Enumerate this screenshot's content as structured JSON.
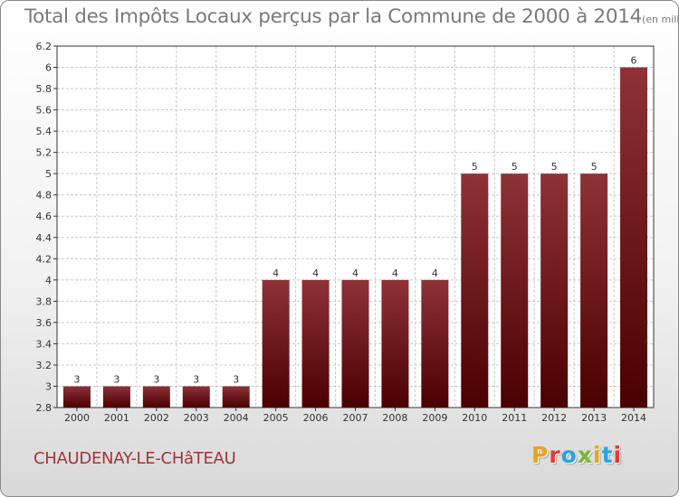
{
  "colors": {
    "bar_top": "#8e3238",
    "bar_bottom": "#4a0000",
    "title": "#7a7a7a",
    "commune": "#a0353b",
    "grid": "#c8c8c8",
    "logo": [
      "#e8a321",
      "#e03a3a",
      "#2aa3d8",
      "#78b832",
      "#e8a321",
      "#2aa3d8",
      "#e03a3a"
    ]
  },
  "footer": {
    "commune": "CHAUDENAY-LE-CHâTEAU",
    "brand": "Proxiti"
  },
  "chart_data": {
    "type": "bar",
    "title": "Total des Impôts Locaux perçus par la Commune de 2000 à 2014",
    "subtitle": "(en milliers d'€)",
    "xlabel": "",
    "ylabel": "",
    "categories": [
      "2000",
      "2001",
      "2002",
      "2003",
      "2004",
      "2005",
      "2006",
      "2007",
      "2008",
      "2009",
      "2010",
      "2011",
      "2012",
      "2013",
      "2014"
    ],
    "values": [
      3,
      3,
      3,
      3,
      3,
      4,
      4,
      4,
      4,
      4,
      5,
      5,
      5,
      5,
      6
    ],
    "value_labels": [
      "3",
      "3",
      "3",
      "3",
      "3",
      "4",
      "4",
      "4",
      "4",
      "4",
      "5",
      "5",
      "5",
      "5",
      "6"
    ],
    "ylim": [
      2.8,
      6.2
    ],
    "yticks": [
      2.8,
      3,
      3.2,
      3.4,
      3.6,
      3.8,
      4,
      4.2,
      4.4,
      4.6,
      4.8,
      5,
      5.2,
      5.4,
      5.6,
      5.8,
      6,
      6.2
    ],
    "ytick_labels": [
      "2.8",
      "3",
      "3.2",
      "3.4",
      "3.6",
      "3.8",
      "4",
      "4.2",
      "4.4",
      "4.6",
      "4.8",
      "5",
      "5.2",
      "5.4",
      "5.6",
      "5.8",
      "6",
      "6.2"
    ],
    "grid": true
  }
}
